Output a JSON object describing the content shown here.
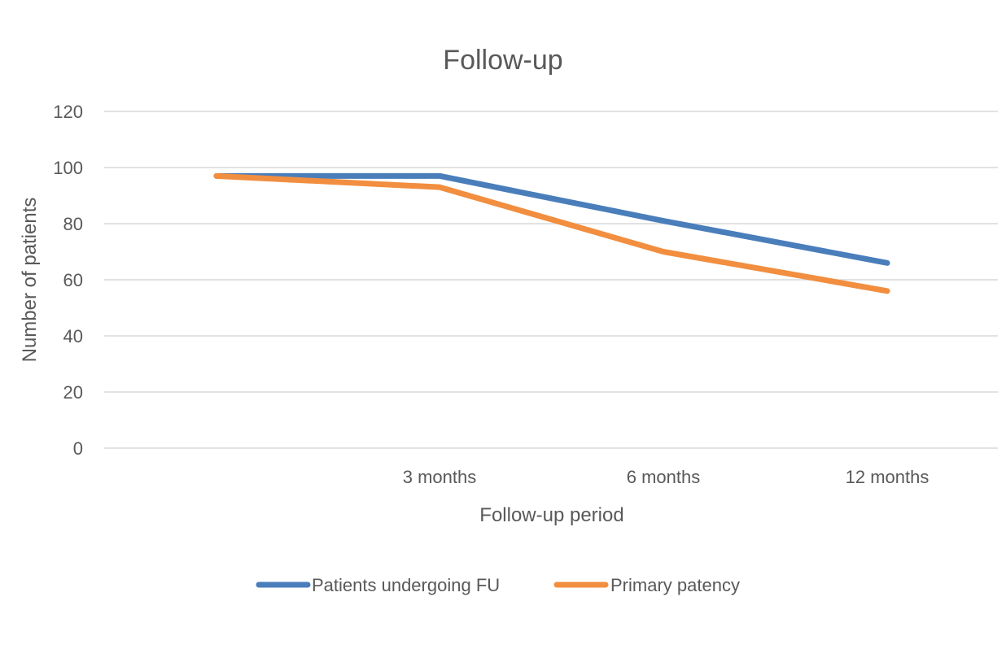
{
  "chart_data": {
    "type": "line",
    "title": "Follow-up",
    "xlabel": "Follow-up period",
    "ylabel": "Number of patients",
    "categories": [
      "",
      "3 months",
      "6 months",
      "12 months"
    ],
    "ylim": [
      0,
      120
    ],
    "yticks": [
      0,
      20,
      40,
      60,
      80,
      100,
      120
    ],
    "grid": true,
    "legend": "bottom",
    "series": [
      {
        "name": "Patients undergoing FU",
        "color": "#4a7ebb",
        "values": [
          97,
          97,
          81,
          66
        ]
      },
      {
        "name": "Primary patency",
        "color": "#f28e3f",
        "values": [
          97,
          93,
          70,
          56
        ]
      }
    ]
  }
}
